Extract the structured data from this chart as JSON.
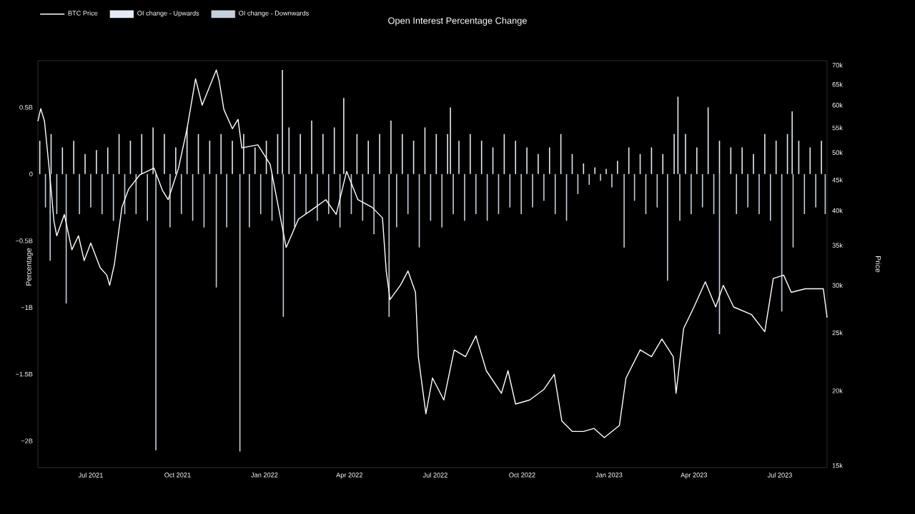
{
  "chart_data": {
    "type": "bar",
    "title": "Open Interest Percentage Change",
    "ylabel": "Percentage",
    "y2label": "Price",
    "legend": "top left",
    "log": "y2",
    "xlim": [
      "2021-05-06",
      "2023-08-20"
    ],
    "ylim": [
      -2.2,
      0.85
    ],
    "xticks": [
      {
        "value": "2021-07-01",
        "label": "Jul 2021"
      },
      {
        "value": "2021-10-01",
        "label": "Oct 2021"
      },
      {
        "value": "2022-01-01",
        "label": "Jan 2022"
      },
      {
        "value": "2022-04-01",
        "label": "Apr 2022"
      },
      {
        "value": "2022-07-01",
        "label": "Jul 2022"
      },
      {
        "value": "2022-10-01",
        "label": "Oct 2022"
      },
      {
        "value": "2023-01-01",
        "label": "Jan 2023"
      },
      {
        "value": "2023-04-01",
        "label": "Apr 2023"
      },
      {
        "value": "2023-07-01",
        "label": "Jul 2023"
      }
    ],
    "yticks": [
      {
        "value": 0.5,
        "label": "0.5B"
      },
      0,
      {
        "value": -0.5,
        "label": "−0.5B"
      },
      {
        "value": -1,
        "label": "−1B"
      },
      {
        "value": -1.5,
        "label": "−1.5B"
      },
      {
        "value": -2,
        "label": "−2B"
      }
    ],
    "y2lim": [
      14880,
      71200
    ],
    "y2ticks": [
      {
        "value": 15000,
        "label": "15k"
      },
      {
        "value": 20000,
        "label": "20k"
      },
      {
        "value": 25000,
        "label": "25k"
      },
      {
        "value": 30000,
        "label": "30k"
      },
      {
        "value": 35000,
        "label": "35k"
      },
      {
        "value": 40000,
        "label": "40k"
      },
      {
        "value": 45000,
        "label": "45k"
      },
      {
        "value": 50000,
        "label": "50k"
      },
      {
        "value": 55000,
        "label": "55k"
      },
      {
        "value": 60000,
        "label": "60k"
      },
      {
        "value": 65000,
        "label": "65k"
      },
      {
        "value": 70000,
        "label": "70k"
      }
    ],
    "series": [
      {
        "name": "BTC Price",
        "type": "line",
        "axis": "y2",
        "color": "#ffffff",
        "x": [
          "2021-05-06",
          "2021-05-09",
          "2021-05-13",
          "2021-05-16",
          "2021-05-19",
          "2021-05-23",
          "2021-05-26",
          "2021-06-03",
          "2021-06-11",
          "2021-06-18",
          "2021-06-24",
          "2021-07-01",
          "2021-07-11",
          "2021-07-18",
          "2021-07-21",
          "2021-07-26",
          "2021-08-03",
          "2021-08-10",
          "2021-08-22",
          "2021-09-06",
          "2021-09-15",
          "2021-09-21",
          "2021-10-02",
          "2021-10-11",
          "2021-10-20",
          "2021-10-27",
          "2021-11-11",
          "2021-11-14",
          "2021-11-19",
          "2021-11-28",
          "2021-12-04",
          "2021-12-08",
          "2021-12-25",
          "2022-01-07",
          "2022-01-24",
          "2022-02-06",
          "2022-02-21",
          "2022-03-07",
          "2022-03-18",
          "2022-03-29",
          "2022-04-10",
          "2022-04-25",
          "2022-05-06",
          "2022-05-10",
          "2022-05-14",
          "2022-05-25",
          "2022-06-02",
          "2022-06-10",
          "2022-06-13",
          "2022-06-21",
          "2022-06-28",
          "2022-07-10",
          "2022-07-21",
          "2022-08-02",
          "2022-08-13",
          "2022-08-24",
          "2022-09-09",
          "2022-09-16",
          "2022-09-24",
          "2022-10-09",
          "2022-10-24",
          "2022-11-04",
          "2022-11-12",
          "2022-11-23",
          "2022-12-05",
          "2022-12-16",
          "2022-12-27",
          "2023-01-12",
          "2023-01-19",
          "2023-02-03",
          "2023-02-15",
          "2023-02-26",
          "2023-03-10",
          "2023-03-13",
          "2023-03-21",
          "2023-04-01",
          "2023-04-13",
          "2023-04-24",
          "2023-05-02",
          "2023-05-13",
          "2023-06-01",
          "2023-06-15",
          "2023-06-24",
          "2023-07-05",
          "2023-07-13",
          "2023-07-28",
          "2023-08-16",
          "2023-08-20"
        ],
        "values": [
          56400,
          59200,
          56400,
          50500,
          45200,
          38400,
          36300,
          39400,
          34400,
          36300,
          33000,
          35300,
          32100,
          31200,
          30000,
          32500,
          40500,
          43400,
          45900,
          47100,
          43200,
          41700,
          47100,
          54800,
          66400,
          60000,
          68700,
          65900,
          59000,
          54800,
          56800,
          50900,
          51500,
          47800,
          34700,
          38700,
          40200,
          41700,
          39400,
          46500,
          41700,
          40500,
          38900,
          31700,
          28400,
          30000,
          31700,
          29200,
          22800,
          18300,
          21000,
          19300,
          23400,
          22800,
          24700,
          21600,
          19800,
          21600,
          19000,
          19300,
          20100,
          21300,
          17800,
          17100,
          17100,
          17300,
          16700,
          17500,
          21000,
          23400,
          22800,
          24400,
          22800,
          19800,
          25400,
          27600,
          30400,
          27600,
          30000,
          27600,
          26800,
          25100,
          30800,
          31200,
          29200,
          29600,
          29600,
          26500
        ]
      },
      {
        "name": "OI change - Upwards",
        "color": "#e4ebf3",
        "x": [
          "2021-05-08",
          "2021-05-20",
          "2021-06-01",
          "2021-06-13",
          "2021-06-25",
          "2021-07-07",
          "2021-07-19",
          "2021-07-31",
          "2021-08-12",
          "2021-08-24",
          "2021-09-05",
          "2021-09-17",
          "2021-09-29",
          "2021-10-11",
          "2021-10-23",
          "2021-11-04",
          "2021-11-16",
          "2021-11-28",
          "2021-12-10",
          "2021-12-22",
          "2022-01-03",
          "2022-01-15",
          "2022-01-20",
          "2022-01-27",
          "2022-02-08",
          "2022-02-20",
          "2022-03-04",
          "2022-03-16",
          "2022-03-26",
          "2022-04-09",
          "2022-04-21",
          "2022-05-03",
          "2022-05-15",
          "2022-05-27",
          "2022-06-08",
          "2022-06-20",
          "2022-07-02",
          "2022-07-14",
          "2022-07-17",
          "2022-07-26",
          "2022-08-07",
          "2022-08-19",
          "2022-08-31",
          "2022-09-12",
          "2022-09-24",
          "2022-10-06",
          "2022-10-18",
          "2022-10-30",
          "2022-11-11",
          "2022-11-23",
          "2022-12-05",
          "2022-12-17",
          "2022-12-29",
          "2023-01-10",
          "2023-01-22",
          "2023-02-03",
          "2023-02-15",
          "2023-02-27",
          "2023-03-11",
          "2023-03-15",
          "2023-03-23",
          "2023-04-04",
          "2023-04-16",
          "2023-04-28",
          "2023-05-10",
          "2023-05-22",
          "2023-06-03",
          "2023-06-15",
          "2023-06-27",
          "2023-07-09",
          "2023-07-14",
          "2023-07-21",
          "2023-08-02",
          "2023-08-14"
        ],
        "values": [
          0.25,
          0.3,
          0.2,
          0.25,
          0.15,
          0.18,
          0.2,
          0.3,
          0.25,
          0.3,
          0.35,
          0.3,
          0.2,
          0.35,
          0.3,
          0.25,
          0.3,
          0.25,
          0.3,
          0.2,
          0.25,
          0.3,
          0.78,
          0.35,
          0.3,
          0.4,
          0.3,
          0.35,
          0.57,
          0.3,
          0.25,
          0.3,
          0.4,
          0.3,
          0.25,
          0.35,
          0.3,
          0.3,
          0.5,
          0.25,
          0.3,
          0.25,
          0.2,
          0.3,
          0.25,
          0.2,
          0.15,
          0.2,
          0.3,
          0.15,
          0.08,
          0.05,
          0.04,
          0.1,
          0.2,
          0.15,
          0.2,
          0.15,
          0.3,
          0.58,
          0.3,
          0.2,
          0.5,
          0.25,
          0.2,
          0.2,
          0.15,
          0.3,
          0.25,
          0.3,
          0.47,
          0.25,
          0.2,
          0.25
        ]
      },
      {
        "name": "OI change - Downwards",
        "color": "#c5d0dc",
        "x": [
          "2021-05-14",
          "2021-05-19",
          "2021-05-26",
          "2021-06-05",
          "2021-06-19",
          "2021-07-01",
          "2021-07-13",
          "2021-07-25",
          "2021-08-06",
          "2021-08-18",
          "2021-08-30",
          "2021-09-08",
          "2021-09-23",
          "2021-10-05",
          "2021-10-17",
          "2021-10-29",
          "2021-11-11",
          "2021-11-22",
          "2021-12-06",
          "2021-12-16",
          "2021-12-28",
          "2022-01-09",
          "2022-01-21",
          "2022-02-02",
          "2022-02-14",
          "2022-02-26",
          "2022-03-10",
          "2022-03-22",
          "2022-04-03",
          "2022-04-15",
          "2022-04-27",
          "2022-05-13",
          "2022-05-21",
          "2022-06-02",
          "2022-06-14",
          "2022-06-26",
          "2022-07-08",
          "2022-07-20",
          "2022-08-01",
          "2022-08-13",
          "2022-08-25",
          "2022-09-06",
          "2022-09-18",
          "2022-09-30",
          "2022-10-12",
          "2022-10-24",
          "2022-11-05",
          "2022-11-17",
          "2022-11-29",
          "2022-12-11",
          "2022-12-23",
          "2023-01-04",
          "2023-01-17",
          "2023-01-28",
          "2023-02-09",
          "2023-02-21",
          "2023-03-04",
          "2023-03-17",
          "2023-03-29",
          "2023-04-10",
          "2023-04-22",
          "2023-04-28",
          "2023-05-16",
          "2023-05-28",
          "2023-06-09",
          "2023-06-21",
          "2023-07-03",
          "2023-07-15",
          "2023-07-27",
          "2023-08-08",
          "2023-08-18"
        ],
        "values": [
          -0.25,
          -0.65,
          -0.3,
          -0.97,
          -0.3,
          -0.25,
          -0.3,
          -0.35,
          -0.3,
          -0.3,
          -0.35,
          -2.07,
          -0.4,
          -0.3,
          -0.35,
          -0.4,
          -0.85,
          -0.4,
          -2.08,
          -0.4,
          -0.3,
          -0.35,
          -1.07,
          -0.4,
          -0.3,
          -0.35,
          -0.3,
          -0.4,
          -0.3,
          -0.35,
          -0.45,
          -1.07,
          -0.4,
          -0.3,
          -0.55,
          -0.35,
          -0.4,
          -0.3,
          -0.35,
          -0.3,
          -0.35,
          -0.3,
          -0.25,
          -0.3,
          -0.25,
          -0.2,
          -0.3,
          -0.35,
          -0.15,
          -0.08,
          -0.05,
          -0.1,
          -0.55,
          -0.2,
          -0.3,
          -0.25,
          -0.8,
          -0.35,
          -0.3,
          -0.25,
          -0.3,
          -1.2,
          -0.3,
          -0.25,
          -0.3,
          -0.35,
          -1.03,
          -0.55,
          -0.3,
          -0.25,
          -0.3
        ]
      }
    ]
  }
}
